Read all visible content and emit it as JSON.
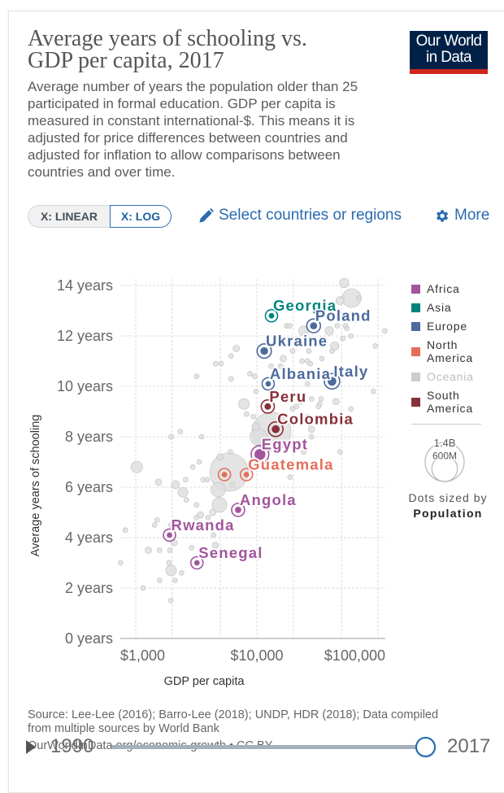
{
  "header": {
    "title": "Average years of schooling vs. GDP per capita, 2017",
    "subtitle": "Average number of years the population older than 25 participated in formal education. GDP per capita is measured in constant international-$. This means it is adjusted for price differences between countries and adjusted for inflation to allow comparisons between countries and over time.",
    "logo": {
      "line1": "Our World",
      "line2": "in Data"
    }
  },
  "controls": {
    "scale_toggle": [
      {
        "label": "X: LINEAR",
        "active": false
      },
      {
        "label": "X: LOG",
        "active": true
      }
    ],
    "select_link": {
      "icon": "pencil-icon",
      "label": "Select countries or regions"
    },
    "more_link": {
      "icon": "gear-icon",
      "label": "More"
    }
  },
  "chart_data": {
    "type": "scatter",
    "title": "Average years of schooling vs. GDP per capita, 2017",
    "xlabel": "GDP per capita",
    "ylabel": "Average years of schooling",
    "xscale": "log",
    "xlim": [
      745,
      115000
    ],
    "ylim": [
      0,
      14
    ],
    "grid": true,
    "xticks": [
      {
        "value": 1000,
        "label": "$1,000"
      },
      {
        "value": 10000,
        "label": "$10,000"
      },
      {
        "value": 100000,
        "label": "$100,000"
      }
    ],
    "xgrid": [
      1000,
      2000,
      5000,
      10000,
      20000,
      50000,
      100000
    ],
    "yticks": [
      {
        "value": 0,
        "label": "0 years"
      },
      {
        "value": 2,
        "label": "2 years"
      },
      {
        "value": 4,
        "label": "4 years"
      },
      {
        "value": 6,
        "label": "6 years"
      },
      {
        "value": 8,
        "label": "8 years"
      },
      {
        "value": 10,
        "label": "10 years"
      },
      {
        "value": 12,
        "label": "12 years"
      },
      {
        "value": 14,
        "label": "14 years"
      }
    ],
    "legend": {
      "position": "right",
      "items": [
        {
          "name": "Africa",
          "color": "#a2559c",
          "dimmed": false
        },
        {
          "name": "Asia",
          "color": "#00847e",
          "dimmed": false
        },
        {
          "name": "Europe",
          "color": "#4c6a9c",
          "dimmed": false
        },
        {
          "name": "North America",
          "color": "#e56e5a",
          "dimmed": false
        },
        {
          "name": "Oceania",
          "color": "#cccccc",
          "dimmed": true
        },
        {
          "name": "South America",
          "color": "#883039",
          "dimmed": false
        }
      ]
    },
    "size_legend": {
      "caption": "Dots sized by",
      "variable": "Population",
      "large_label": "1.4B",
      "large_value_m": 1400,
      "small_label": "600M",
      "small_value_m": 600
    },
    "highlighted": [
      {
        "label": "Georgia",
        "region": "Asia",
        "gdp": 13200,
        "years": 12.8,
        "pop_m": 4
      },
      {
        "label": "Poland",
        "region": "Europe",
        "gdp": 29400,
        "years": 12.4,
        "pop_m": 38
      },
      {
        "label": "Ukraine",
        "region": "Europe",
        "gdp": 11500,
        "years": 11.4,
        "pop_m": 45
      },
      {
        "label": "Albania",
        "region": "Europe",
        "gdp": 12400,
        "years": 10.1,
        "pop_m": 3
      },
      {
        "label": "Italy",
        "region": "Europe",
        "gdp": 41700,
        "years": 10.2,
        "pop_m": 60
      },
      {
        "label": "Peru",
        "region": "South America",
        "gdp": 12300,
        "years": 9.2,
        "pop_m": 32
      },
      {
        "label": "Colombia",
        "region": "South America",
        "gdp": 14300,
        "years": 8.3,
        "pop_m": 49
      },
      {
        "label": "Egypt",
        "region": "Africa",
        "gdp": 10600,
        "years": 7.3,
        "pop_m": 98
      },
      {
        "label": "",
        "region": "North America",
        "gdp": 5400,
        "years": 6.5,
        "pop_m": 9
      },
      {
        "label": "Guatemala",
        "region": "North America",
        "gdp": 8200,
        "years": 6.5,
        "pop_m": 17
      },
      {
        "label": "Angola",
        "region": "Africa",
        "gdp": 7000,
        "years": 5.1,
        "pop_m": 30
      },
      {
        "label": "Rwanda",
        "region": "Africa",
        "gdp": 1900,
        "years": 4.1,
        "pop_m": 12
      },
      {
        "label": "Senegal",
        "region": "Africa",
        "gdp": 3200,
        "years": 3.0,
        "pop_m": 16
      }
    ],
    "background_points": [
      {
        "gdp": 1020,
        "years": 6.8,
        "pop_m": 120
      },
      {
        "gdp": 1540,
        "years": 6.2,
        "pop_m": 39
      },
      {
        "gdp": 2130,
        "years": 6.1,
        "pop_m": 60
      },
      {
        "gdp": 2450,
        "years": 5.8,
        "pop_m": 88
      },
      {
        "gdp": 2580,
        "years": 6.3,
        "pop_m": 20
      },
      {
        "gdp": 2620,
        "years": 5.5,
        "pop_m": 20
      },
      {
        "gdp": 2960,
        "years": 6.8,
        "pop_m": 20
      },
      {
        "gdp": 3340,
        "years": 7.0,
        "pop_m": 20
      },
      {
        "gdp": 3170,
        "years": 5.3,
        "pop_m": 20
      },
      {
        "gdp": 3430,
        "years": 4.9,
        "pop_m": 39
      },
      {
        "gdp": 3170,
        "years": 4.8,
        "pop_m": 20
      },
      {
        "gdp": 3950,
        "years": 4.8,
        "pop_m": 20
      },
      {
        "gdp": 3600,
        "years": 6.3,
        "pop_m": 20
      },
      {
        "gdp": 3900,
        "years": 6.3,
        "pop_m": 20
      },
      {
        "gdp": 4970,
        "years": 7.2,
        "pop_m": 39
      },
      {
        "gdp": 5890,
        "years": 6.6,
        "pop_m": 1340
      },
      {
        "gdp": 4790,
        "years": 5.9,
        "pop_m": 190
      },
      {
        "gdp": 4910,
        "years": 5.3,
        "pop_m": 200
      },
      {
        "gdp": 4320,
        "years": 5.0,
        "pop_m": 39
      },
      {
        "gdp": 6270,
        "years": 6.1,
        "pop_m": 20
      },
      {
        "gdp": 1500,
        "years": 4.7,
        "pop_m": 20
      },
      {
        "gdp": 1430,
        "years": 4.5,
        "pop_m": 20
      },
      {
        "gdp": 820,
        "years": 4.3,
        "pop_m": 20
      },
      {
        "gdp": 1960,
        "years": 4.5,
        "pop_m": 20
      },
      {
        "gdp": 2070,
        "years": 3.8,
        "pop_m": 39
      },
      {
        "gdp": 1270,
        "years": 3.5,
        "pop_m": 39
      },
      {
        "gdp": 1570,
        "years": 3.5,
        "pop_m": 20
      },
      {
        "gdp": 1910,
        "years": 3.5,
        "pop_m": 20
      },
      {
        "gdp": 750,
        "years": 3.0,
        "pop_m": 20
      },
      {
        "gdp": 1880,
        "years": 3.0,
        "pop_m": 20
      },
      {
        "gdp": 1960,
        "years": 2.7,
        "pop_m": 105
      },
      {
        "gdp": 2390,
        "years": 2.6,
        "pop_m": 20
      },
      {
        "gdp": 1580,
        "years": 2.3,
        "pop_m": 20
      },
      {
        "gdp": 2110,
        "years": 2.3,
        "pop_m": 20
      },
      {
        "gdp": 1150,
        "years": 2.0,
        "pop_m": 20
      },
      {
        "gdp": 1950,
        "years": 1.5,
        "pop_m": 20
      },
      {
        "gdp": 2890,
        "years": 3.6,
        "pop_m": 20
      },
      {
        "gdp": 4550,
        "years": 3.7,
        "pop_m": 39
      },
      {
        "gdp": 4390,
        "years": 4.1,
        "pop_m": 20
      },
      {
        "gdp": 6760,
        "years": 11.5,
        "pop_m": 39
      },
      {
        "gdp": 6120,
        "years": 11.2,
        "pop_m": 20
      },
      {
        "gdp": 4570,
        "years": 10.9,
        "pop_m": 20
      },
      {
        "gdp": 5070,
        "years": 10.9,
        "pop_m": 20
      },
      {
        "gdp": 3180,
        "years": 10.4,
        "pop_m": 20
      },
      {
        "gdp": 6120,
        "years": 10.3,
        "pop_m": 20
      },
      {
        "gdp": 8750,
        "years": 10.5,
        "pop_m": 20
      },
      {
        "gdp": 9600,
        "years": 10.4,
        "pop_m": 20
      },
      {
        "gdp": 7820,
        "years": 9.3,
        "pop_m": 105
      },
      {
        "gdp": 2330,
        "years": 8.2,
        "pop_m": 20
      },
      {
        "gdp": 1960,
        "years": 8.0,
        "pop_m": 20
      },
      {
        "gdp": 3500,
        "years": 8.0,
        "pop_m": 20
      },
      {
        "gdp": 52500,
        "years": 14.1,
        "pop_m": 82
      },
      {
        "gdp": 60600,
        "years": 13.5,
        "pop_m": 325
      },
      {
        "gdp": 69800,
        "years": 13.5,
        "pop_m": 20
      },
      {
        "gdp": 48600,
        "years": 13.4,
        "pop_m": 60
      },
      {
        "gdp": 17600,
        "years": 12.4,
        "pop_m": 20
      },
      {
        "gdp": 18700,
        "years": 12.4,
        "pop_m": 20
      },
      {
        "gdp": 33000,
        "years": 12.8,
        "pop_m": 20
      },
      {
        "gdp": 39600,
        "years": 12.2,
        "pop_m": 66
      },
      {
        "gdp": 46100,
        "years": 12.4,
        "pop_m": 20
      },
      {
        "gdp": 53900,
        "years": 12.4,
        "pop_m": 20
      },
      {
        "gdp": 55300,
        "years": 12.3,
        "pop_m": 20
      },
      {
        "gdp": 59800,
        "years": 12.0,
        "pop_m": 20
      },
      {
        "gdp": 51200,
        "years": 11.9,
        "pop_m": 20
      },
      {
        "gdp": 43900,
        "years": 11.6,
        "pop_m": 66
      },
      {
        "gdp": 41700,
        "years": 11.4,
        "pop_m": 20
      },
      {
        "gdp": 113800,
        "years": 12.2,
        "pop_m": 20
      },
      {
        "gdp": 95000,
        "years": 11.6,
        "pop_m": 20
      },
      {
        "gdp": 19700,
        "years": 11.4,
        "pop_m": 20
      },
      {
        "gdp": 23600,
        "years": 11.0,
        "pop_m": 20
      },
      {
        "gdp": 26900,
        "years": 11.4,
        "pop_m": 20
      },
      {
        "gdp": 26200,
        "years": 11.0,
        "pop_m": 20
      },
      {
        "gdp": 34400,
        "years": 11.1,
        "pop_m": 20
      },
      {
        "gdp": 13100,
        "years": 10.8,
        "pop_m": 20
      },
      {
        "gdp": 15700,
        "years": 10.8,
        "pop_m": 20
      },
      {
        "gdp": 24300,
        "years": 12.2,
        "pop_m": 88
      },
      {
        "gdp": 91600,
        "years": 9.8,
        "pop_m": 20
      },
      {
        "gdp": 59800,
        "years": 9.1,
        "pop_m": 20
      },
      {
        "gdp": 45000,
        "years": 9.4,
        "pop_m": 39
      },
      {
        "gdp": 33000,
        "years": 9.3,
        "pop_m": 20
      },
      {
        "gdp": 9840,
        "years": 9.8,
        "pop_m": 20
      },
      {
        "gdp": 8220,
        "years": 8.9,
        "pop_m": 20
      },
      {
        "gdp": 9360,
        "years": 8.8,
        "pop_m": 20
      },
      {
        "gdp": 9840,
        "years": 8.4,
        "pop_m": 60
      },
      {
        "gdp": 13200,
        "years": 8.2,
        "pop_m": 1390
      },
      {
        "gdp": 10300,
        "years": 8.0,
        "pop_m": 264
      },
      {
        "gdp": 16500,
        "years": 11.1,
        "pop_m": 39
      },
      {
        "gdp": 27600,
        "years": 10.9,
        "pop_m": 20
      },
      {
        "gdp": 26200,
        "years": 10.1,
        "pop_m": 20
      },
      {
        "gdp": 28300,
        "years": 9.5,
        "pop_m": 20
      },
      {
        "gdp": 33900,
        "years": 9.5,
        "pop_m": 20
      },
      {
        "gdp": 21300,
        "years": 9.2,
        "pop_m": 20
      },
      {
        "gdp": 19700,
        "years": 9.1,
        "pop_m": 20
      },
      {
        "gdp": 23000,
        "years": 9.4,
        "pop_m": 20
      },
      {
        "gdp": 32200,
        "years": 9.2,
        "pop_m": 20
      },
      {
        "gdp": 28300,
        "years": 8.3,
        "pop_m": 39
      },
      {
        "gdp": 28300,
        "years": 8.0,
        "pop_m": 20
      },
      {
        "gdp": 48600,
        "years": 7.4,
        "pop_m": 20
      },
      {
        "gdp": 24300,
        "years": 7.4,
        "pop_m": 20
      },
      {
        "gdp": 6040,
        "years": 7.4,
        "pop_m": 20
      },
      {
        "gdp": 26200,
        "years": 8.8,
        "pop_m": 20
      },
      {
        "gdp": 18800,
        "years": 6.4,
        "pop_m": 20
      }
    ]
  },
  "footer": {
    "source": "Source: Lee-Lee (2016); Barro-Lee (2018); UNDP, HDR (2018); Data compiled from multiple sources by World Bank",
    "url": "OurWorldInData.org/economic-growth • CC BY"
  },
  "timeline": {
    "play_icon": "play-icon",
    "start_year": "1990",
    "end_year": "2017",
    "progress": 1.0
  }
}
